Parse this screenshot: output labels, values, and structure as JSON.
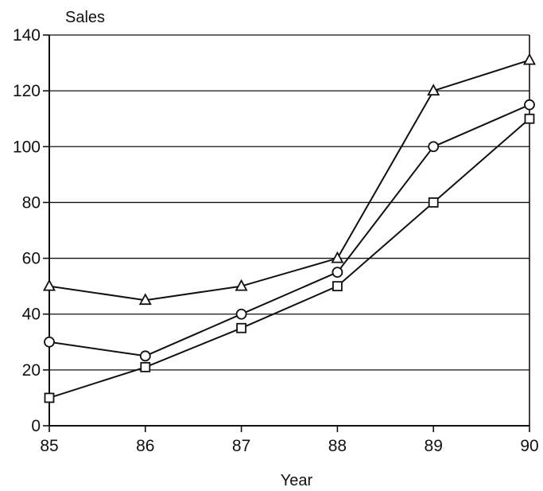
{
  "chart_data": {
    "type": "line",
    "title": "",
    "xlabel": "Year",
    "ylabel": "Sales",
    "x": [
      "85",
      "86",
      "87",
      "88",
      "89",
      "90"
    ],
    "ylim": [
      0,
      140
    ],
    "yticks": [
      "0",
      "20",
      "40",
      "60",
      "80",
      "100",
      "120",
      "140"
    ],
    "grid": "horizontal",
    "legend": "none",
    "series": [
      {
        "marker": "triangle",
        "values": [
          50,
          45,
          50,
          60,
          120,
          131
        ]
      },
      {
        "marker": "circle",
        "values": [
          30,
          25,
          40,
          55,
          100,
          115
        ]
      },
      {
        "marker": "square",
        "values": [
          10,
          21,
          35,
          50,
          80,
          110
        ]
      }
    ],
    "colors": {
      "line": "#111111",
      "grid": "#111111",
      "marker_fill": "#ffffff"
    }
  }
}
